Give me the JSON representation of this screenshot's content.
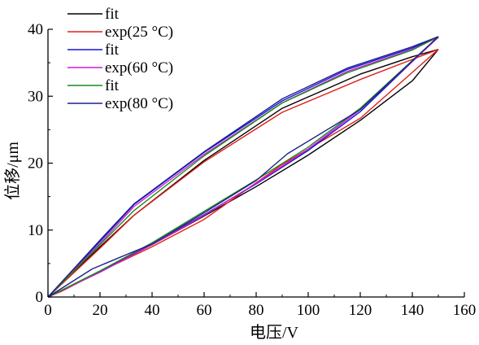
{
  "chart_data": {
    "type": "line",
    "xlabel": "电压/V",
    "ylabel": "位移/μm",
    "xlim": [
      0,
      160
    ],
    "ylim": [
      0,
      40
    ],
    "x_ticks": [
      0,
      20,
      40,
      60,
      80,
      100,
      120,
      140,
      160
    ],
    "y_ticks": [
      0,
      10,
      20,
      30,
      40
    ],
    "grid": false,
    "legend_position": "top-left",
    "series": [
      {
        "name": "fit",
        "color": "#000000",
        "branch": "rising",
        "x": [
          0,
          20,
          40,
          60,
          80,
          100,
          120,
          140,
          150
        ],
        "y": [
          0,
          3.8,
          7.8,
          12.1,
          16.5,
          21.2,
          26.4,
          32.3,
          37.0
        ]
      },
      {
        "name": "fit",
        "color": "#000000",
        "branch": "falling",
        "x": [
          150,
          140,
          120,
          90,
          60,
          33,
          20,
          0
        ],
        "y": [
          37.0,
          35.9,
          33.3,
          28.2,
          20.4,
          12.2,
          7.5,
          0
        ]
      },
      {
        "name": "exp(25 °C)",
        "color": "#e0201b",
        "branch": "rising",
        "x": [
          0,
          5,
          20,
          40,
          60,
          90,
          120,
          150
        ],
        "y": [
          0,
          0.8,
          3.8,
          7.5,
          11.6,
          19.8,
          26.7,
          37.0
        ]
      },
      {
        "name": "exp(25 °C)",
        "color": "#e0201b",
        "branch": "falling",
        "x": [
          150,
          120,
          90,
          60,
          33,
          20,
          0
        ],
        "y": [
          37.0,
          32.5,
          27.6,
          20.2,
          12.2,
          7.3,
          0
        ]
      },
      {
        "name": "fit",
        "color": "#1515d6",
        "branch": "rising",
        "x": [
          0,
          20,
          40,
          60,
          80,
          100,
          120,
          150
        ],
        "y": [
          0,
          3.8,
          7.9,
          12.3,
          16.9,
          21.9,
          27.7,
          38.9
        ]
      },
      {
        "name": "fit",
        "color": "#1515d6",
        "branch": "falling",
        "x": [
          150,
          140,
          115,
          90,
          60,
          33,
          20,
          0
        ],
        "y": [
          38.9,
          37.2,
          34.0,
          29.3,
          21.6,
          13.8,
          8.3,
          0
        ]
      },
      {
        "name": "exp(60 °C)",
        "color": "#d61ad6",
        "branch": "rising",
        "x": [
          0,
          20,
          40,
          60,
          80,
          100,
          120,
          150
        ],
        "y": [
          0,
          3.7,
          7.8,
          12.2,
          17.0,
          22.1,
          28.0,
          38.8
        ]
      },
      {
        "name": "exp(60 °C)",
        "color": "#d61ad6",
        "branch": "falling",
        "x": [
          150,
          140,
          115,
          90,
          60,
          33,
          20,
          0
        ],
        "y": [
          38.8,
          37.0,
          33.7,
          29.0,
          21.3,
          13.5,
          8.0,
          0
        ]
      },
      {
        "name": "fit",
        "color": "#1a8c1a",
        "branch": "rising",
        "x": [
          0,
          20,
          40,
          60,
          80,
          100,
          120,
          150
        ],
        "y": [
          0,
          3.9,
          8.1,
          12.8,
          17.5,
          22.4,
          28.2,
          38.9
        ]
      },
      {
        "name": "fit",
        "color": "#1a8c1a",
        "branch": "falling",
        "x": [
          150,
          140,
          115,
          90,
          60,
          33,
          20,
          0
        ],
        "y": [
          38.9,
          36.9,
          33.5,
          29.0,
          21.1,
          12.9,
          7.8,
          0
        ]
      },
      {
        "name": "exp(80 °C)",
        "color": "#1f1f8c",
        "branch": "rising",
        "x": [
          0,
          17,
          33,
          40,
          60,
          80,
          92,
          120,
          150
        ],
        "y": [
          0,
          4.2,
          6.8,
          7.9,
          12.6,
          17.4,
          21.4,
          28.0,
          38.9
        ]
      },
      {
        "name": "exp(80 °C)",
        "color": "#1f1f8c",
        "branch": "falling",
        "x": [
          150,
          140,
          115,
          90,
          60,
          33,
          20,
          0
        ],
        "y": [
          38.9,
          37.4,
          34.2,
          29.6,
          21.7,
          13.9,
          8.5,
          0
        ]
      }
    ],
    "legend": [
      {
        "label": "fit",
        "color": "#000000"
      },
      {
        "label": "exp(25 °C)",
        "color": "#e0201b"
      },
      {
        "label": "fit",
        "color": "#1515d6"
      },
      {
        "label": "exp(60 °C)",
        "color": "#d61ad6"
      },
      {
        "label": "fit",
        "color": "#1a8c1a"
      },
      {
        "label": "exp(80 °C)",
        "color": "#1f1f8c"
      }
    ]
  }
}
